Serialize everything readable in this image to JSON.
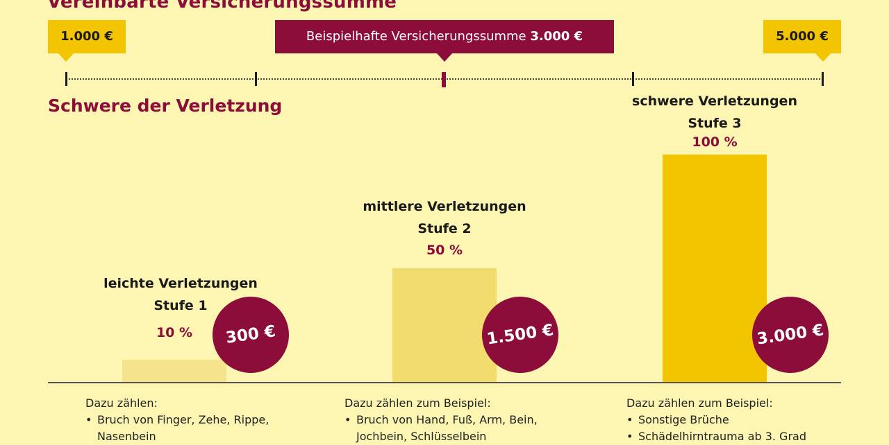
{
  "header": {
    "title": "Vereinbarte Versicherungssumme",
    "min_flag": "1.000 €",
    "max_flag": "5.000 €",
    "example_prefix": "Beispielhafte Versicherungssumme ",
    "example_value": "3.000 €"
  },
  "section_title": "Schwere der Verletzung",
  "colors": {
    "accent": "#8c0c3a",
    "brand_yellow": "#f3c400",
    "background": "#fdf5b2",
    "bar_level1": "#f5e48d",
    "bar_level2": "#f3dc6e",
    "bar_level3": "#f3c400"
  },
  "chart_data": {
    "type": "bar",
    "categories": [
      "leichte Verletzungen",
      "mittlere Verletzungen",
      "schwere Verletzungen"
    ],
    "series": [
      {
        "values": [
          10,
          50,
          100
        ]
      }
    ],
    "ylim": [
      0,
      100
    ],
    "stages": [
      "Stufe 1",
      "Stufe 2",
      "Stufe 3"
    ],
    "percent_labels": [
      "10 %",
      "50 %",
      "100 %"
    ],
    "amount_labels": [
      "300 €",
      "1.500 €",
      "3.000 €"
    ]
  },
  "details": [
    {
      "heading": "Dazu zählen:",
      "items": [
        "Bruch von Finger, Zehe, Rippe,",
        "Nasenbein"
      ]
    },
    {
      "heading": "Dazu zählen zum Beispiel:",
      "items": [
        "Bruch von Hand, Fuß, Arm, Bein,",
        "Jochbein, Schlüsselbein"
      ]
    },
    {
      "heading": "Dazu zählen zum Beispiel:",
      "items": [
        "Sonstige Brüche",
        "Schädelhirntrauma ab 3. Grad"
      ]
    }
  ]
}
